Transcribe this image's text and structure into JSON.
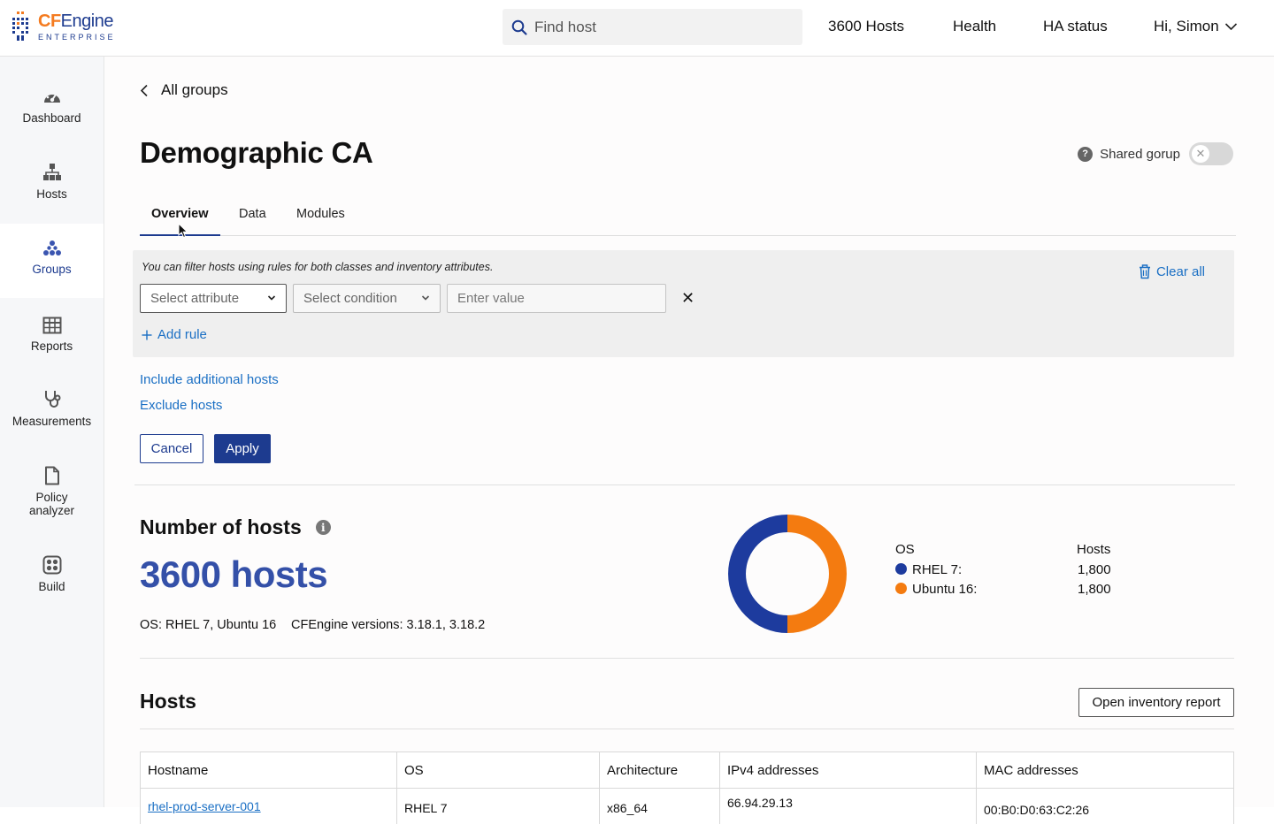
{
  "topbar": {
    "logo_brand_a": "CF",
    "logo_brand_b": "Engine",
    "logo_sub": "ENTERPRISE",
    "search_placeholder": "Find host",
    "nav": [
      "3600 Hosts",
      "Health",
      "HA status"
    ],
    "user_greeting": "Hi, Simon"
  },
  "sidebar": {
    "items": [
      {
        "label": "Dashboard",
        "icon": "dashboard-icon"
      },
      {
        "label": "Hosts",
        "icon": "hosts-icon"
      },
      {
        "label": "Groups",
        "icon": "groups-icon",
        "active": true
      },
      {
        "label": "Reports",
        "icon": "reports-icon"
      },
      {
        "label": "Measurements",
        "icon": "measurements-icon"
      },
      {
        "label": "Policy",
        "label2": "analyzer",
        "icon": "policy-analyzer-icon"
      },
      {
        "label": "Build",
        "icon": "build-icon"
      }
    ]
  },
  "page": {
    "back_label": "All groups",
    "title": "Demographic CA",
    "shared_label": "Shared gorup",
    "shared_enabled": false
  },
  "tabs": [
    "Overview",
    "Data",
    "Modules"
  ],
  "filter": {
    "hint": "You can filter hosts using rules for both classes and inventory attributes.",
    "clear_all": "Clear all",
    "attribute_placeholder": "Select attribute",
    "condition_placeholder": "Select condition",
    "value_placeholder": "Enter value",
    "add_rule": "Add rule"
  },
  "links": {
    "include": "Include additional hosts",
    "exclude": "Exclude hosts"
  },
  "buttons": {
    "cancel": "Cancel",
    "apply": "Apply",
    "inventory": "Open inventory report"
  },
  "summary": {
    "heading": "Number of hosts",
    "count": "3600 hosts",
    "os": "OS: RHEL 7, Ubuntu 16",
    "versions": "CFEngine versions: 3.18.1, 3.18.2"
  },
  "chart_data": {
    "type": "pie",
    "donut": true,
    "legend_header_label": "OS",
    "legend_header_value": "Hosts",
    "slices": [
      {
        "label": "RHEL 7:",
        "value": 1800,
        "display": "1,800",
        "color": "#1d3b9e"
      },
      {
        "label": "Ubuntu 16:",
        "value": 1800,
        "display": "1,800",
        "color": "#f47b10"
      }
    ]
  },
  "hosts_table": {
    "title": "Hosts",
    "columns": [
      "Hostname",
      "OS",
      "Architecture",
      "IPv4 addresses",
      "MAC addresses"
    ],
    "rows": [
      [
        "rhel-prod-server-001",
        "RHEL 7",
        "x86_64",
        "66.94.29.13",
        "00:B0:D0:63:C2:26"
      ]
    ]
  }
}
